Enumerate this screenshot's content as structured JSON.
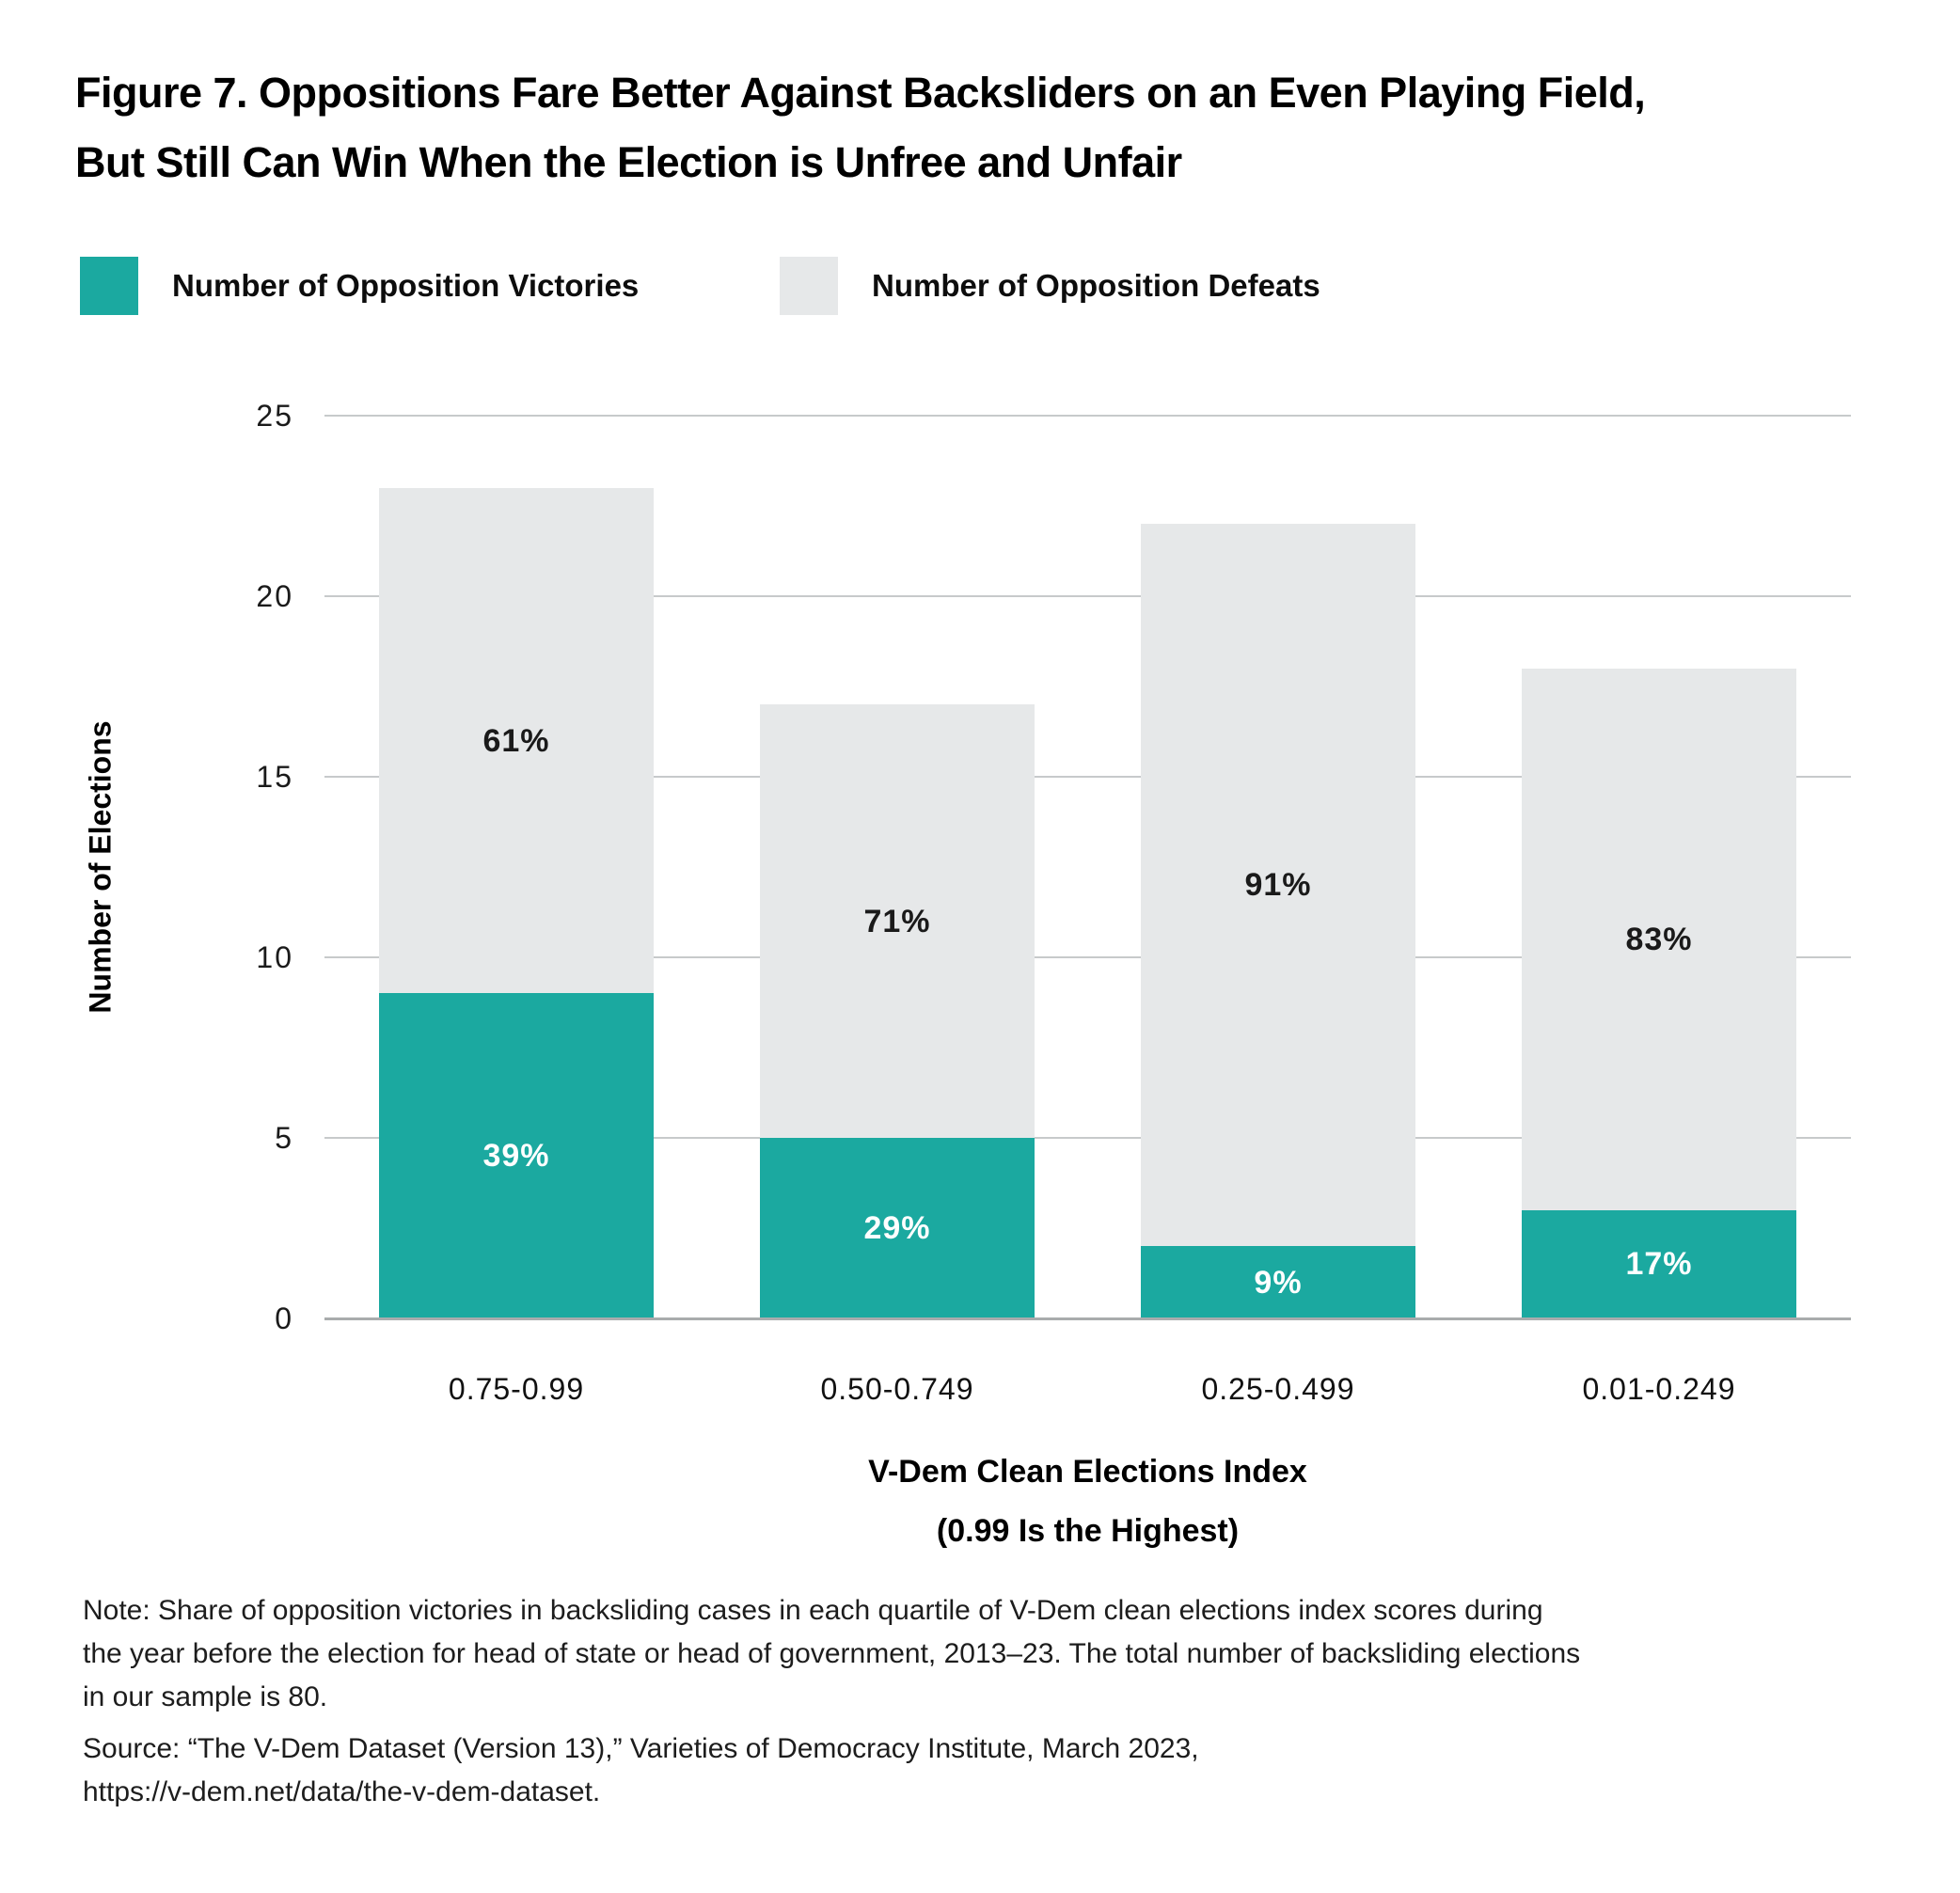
{
  "header": {
    "title_line1": "Figure 7. Oppositions Fare Better Against Backsliders on an Even Playing Field,",
    "title_line2": "But Still Can Win When the Election is Unfree and Unfair"
  },
  "legend": [
    {
      "label": "Number of Opposition Victories",
      "color": "#1ba9a0"
    },
    {
      "label": "Number of Opposition Defeats",
      "color": "#e6e8e9"
    }
  ],
  "chart_data": {
    "type": "bar",
    "subtype": "stacked",
    "title": "Figure 7. Oppositions Fare Better Against Backsliders on an Even Playing Field, But Still Can Win When the Election is Unfree and Unfair",
    "categories": [
      "0.75-0.99",
      "0.50-0.749",
      "0.25-0.499",
      "0.01-0.249"
    ],
    "series": [
      {
        "name": "Number of Opposition Victories",
        "color": "#1ba9a0",
        "values": [
          9,
          5,
          2,
          3
        ],
        "labels": [
          "39%",
          "29%",
          "9%",
          "17%"
        ],
        "label_color": "#ffffff"
      },
      {
        "name": "Number of Opposition Defeats",
        "color": "#e6e8e9",
        "values": [
          14,
          12,
          20,
          15
        ],
        "labels": [
          "61%",
          "71%",
          "91%",
          "83%"
        ],
        "label_color": "#1a1a1a"
      }
    ],
    "totals": [
      23,
      17,
      22,
      18
    ],
    "xlabel_line1": "V-Dem Clean Elections Index",
    "xlabel_line2": "(0.99 Is the Highest)",
    "ylabel": "Number of Elections",
    "yticks": [
      0,
      5,
      10,
      15,
      20,
      25
    ],
    "ylim": [
      0,
      25
    ],
    "grid": true,
    "legend_position": "top-left"
  },
  "colors": {
    "victories": "#1ba9a0",
    "defeats": "#e6e8e9",
    "gridline": "#c7cacb",
    "baseline": "#a9acad",
    "text": "#000000"
  },
  "note": {
    "lines": [
      "Note: Share of opposition victories in backsliding cases in each quartile of V-Dem clean elections index scores during",
      "the year before the election for head of state or head of government, 2013–23. The total number of backsliding elections",
      "in our sample is 80.",
      "Source: “The V-Dem Dataset (Version 13),” Varieties of Democracy Institute, March 2023,",
      "https://v-dem.net/data/the-v-dem-dataset."
    ]
  }
}
